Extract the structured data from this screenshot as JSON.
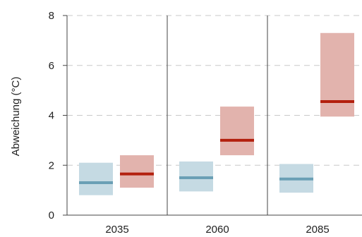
{
  "chart_data": {
    "type": "bar",
    "subtype": "range-box-with-median",
    "title": "",
    "xlabel": "",
    "ylabel": "Abweichung (°C)",
    "ylim": [
      0,
      8
    ],
    "yticks": [
      "0",
      "2",
      "4",
      "6",
      "8"
    ],
    "categories": [
      "2035",
      "2060",
      "2085"
    ],
    "grid": "horizontal dashed",
    "legend": "none",
    "series": [
      {
        "color_fill": "#c5dae3",
        "color_line": "#6a9fb5",
        "low": [
          0.8,
          0.95,
          0.9
        ],
        "median": [
          1.3,
          1.5,
          1.45
        ],
        "high": [
          2.1,
          2.15,
          2.05
        ]
      },
      {
        "color_fill": "#e2b3ad",
        "color_line": "#b3200e",
        "low": [
          1.1,
          2.4,
          3.95
        ],
        "median": [
          1.65,
          3.0,
          4.55
        ],
        "high": [
          2.4,
          4.35,
          7.3
        ]
      }
    ]
  }
}
